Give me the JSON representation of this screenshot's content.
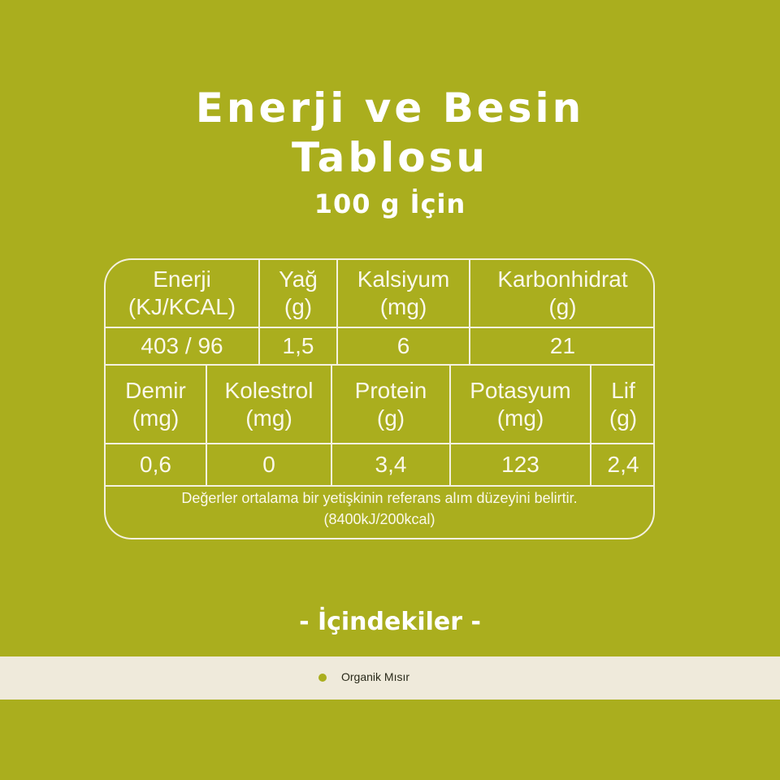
{
  "title": {
    "line1": "Enerji ve Besin",
    "line2": "Tablosu",
    "subtitle": "100 g İçin"
  },
  "table": {
    "row1": [
      {
        "header": "Enerji\n(KJ/KCAL)",
        "value": "403 / 96"
      },
      {
        "header": "Yağ\n(g)",
        "value": "1,5"
      },
      {
        "header": "Kalsiyum\n(mg)",
        "value": "6"
      },
      {
        "header": "Karbonhidrat\n(g)",
        "value": "21"
      }
    ],
    "row2": [
      {
        "header": "Demir\n(mg)",
        "value": "0,6"
      },
      {
        "header": "Kolestrol\n(mg)",
        "value": "0"
      },
      {
        "header": "Protein\n(g)",
        "value": "3,4"
      },
      {
        "header": "Potasyum\n(mg)",
        "value": "123"
      },
      {
        "header": "Lif\n(g)",
        "value": "2,4"
      }
    ],
    "footnote": "Değerler ortalama bir yetişkinin referans alım düzeyini belirtir.",
    "footnote2": "(8400kJ/200kcal)"
  },
  "ingredients": {
    "title": "-  İçindekiler  -",
    "items": [
      "Organik Mısır"
    ]
  },
  "colors": {
    "background": "#aaae1e",
    "strip": "#efeadb"
  }
}
